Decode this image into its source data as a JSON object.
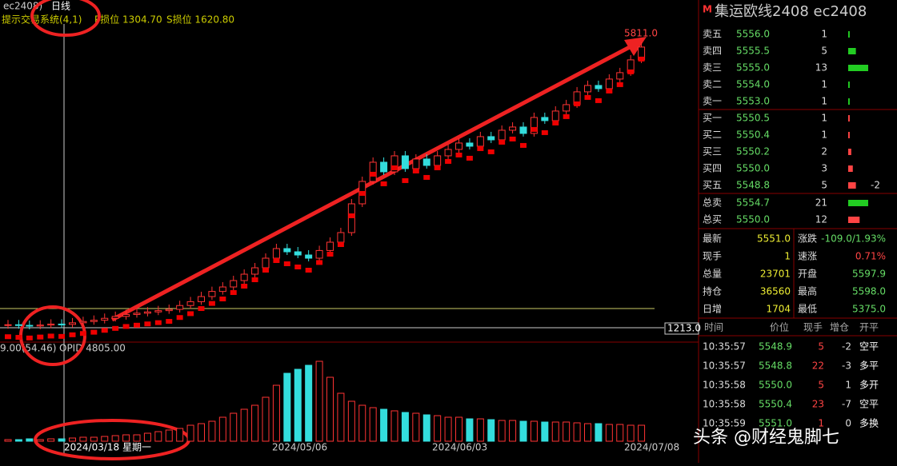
{
  "top_bar": {
    "symbol": "ec2408)",
    "period": "日线",
    "system": "提示交易系统(4,1)",
    "p_stop": "P损位 1304.70",
    "s_stop": "S损位 1620.80"
  },
  "chart": {
    "high_label": {
      "value": 5811,
      "label": "5811.0"
    },
    "low_label": {
      "value": 1213,
      "label": "1213.0"
    },
    "closes": [
      1260,
      1250,
      1240,
      1255,
      1270,
      1265,
      1290,
      1310,
      1330,
      1360,
      1390,
      1420,
      1440,
      1460,
      1480,
      1500,
      1560,
      1620,
      1700,
      1780,
      1850,
      1950,
      2050,
      2150,
      2300,
      2450,
      2400,
      2350,
      2300,
      2420,
      2550,
      2700,
      3150,
      3500,
      3800,
      3650,
      3900,
      3700,
      3850,
      3750,
      3900,
      4000,
      4100,
      4050,
      4200,
      4150,
      4300,
      4350,
      4250,
      4500,
      4450,
      4600,
      4700,
      4900,
      5000,
      4950,
      5100,
      5200,
      5400,
      5600
    ],
    "volumes": [
      2,
      2,
      3,
      2,
      3,
      3,
      4,
      5,
      5,
      6,
      7,
      8,
      8,
      10,
      12,
      14,
      16,
      20,
      22,
      25,
      30,
      35,
      40,
      45,
      55,
      70,
      85,
      90,
      95,
      100,
      80,
      60,
      50,
      45,
      42,
      40,
      38,
      36,
      35,
      33,
      32,
      30,
      30,
      28,
      28,
      27,
      26,
      26,
      25,
      25,
      24,
      24,
      24,
      23,
      22,
      22,
      21,
      21,
      20,
      20
    ],
    "osc_label": "9.00(54.46)",
    "opi_label": "OPID 4805.00",
    "dates": [
      "2024/03/18 星期一",
      "2024/05/06",
      "2024/06/03",
      "2024/07/08"
    ]
  },
  "watermark": "头条 @财经鬼脚七",
  "panel": {
    "marker": "M",
    "title": "集运欧线2408  ec2408",
    "asks": [
      [
        "卖五",
        "5556.0",
        1
      ],
      [
        "卖四",
        "5555.5",
        5
      ],
      [
        "卖三",
        "5555.0",
        13
      ],
      [
        "卖二",
        "5554.0",
        1
      ],
      [
        "卖一",
        "5553.0",
        1
      ]
    ],
    "bids": [
      [
        "买一",
        "5550.5",
        1
      ],
      [
        "买二",
        "5550.4",
        1
      ],
      [
        "买三",
        "5550.2",
        2
      ],
      [
        "买四",
        "5550.0",
        3
      ],
      [
        "买五",
        "5548.8",
        5
      ]
    ],
    "bid_change": "-2",
    "totals": [
      [
        "总卖",
        "5554.7",
        21
      ],
      [
        "总买",
        "5550.0",
        12
      ]
    ],
    "stats": [
      [
        "最新",
        "5551.0",
        "涨跌",
        "-109.0/1.93%"
      ],
      [
        "现手",
        "1",
        "速涨",
        "0.71%"
      ],
      [
        "总量",
        "23701",
        "开盘",
        "5597.9"
      ],
      [
        "持仓",
        "36560",
        "最高",
        "5598.0"
      ],
      [
        "日增",
        "1704",
        "最低",
        "5375.0"
      ]
    ],
    "trade_header": [
      "时间",
      "价位",
      "现手",
      "增仓",
      "开平"
    ],
    "trades": [
      [
        "10:35:57",
        "5548.9",
        "5",
        "-2",
        "空平"
      ],
      [
        "10:35:57",
        "5548.8",
        "22",
        "-3",
        "多平"
      ],
      [
        "10:35:58",
        "5550.0",
        "5",
        "1",
        "多开"
      ],
      [
        "10:35:58",
        "5550.4",
        "23",
        "-7",
        "空平"
      ],
      [
        "10:35:59",
        "5551.0",
        "1",
        "0",
        "多换"
      ]
    ]
  }
}
